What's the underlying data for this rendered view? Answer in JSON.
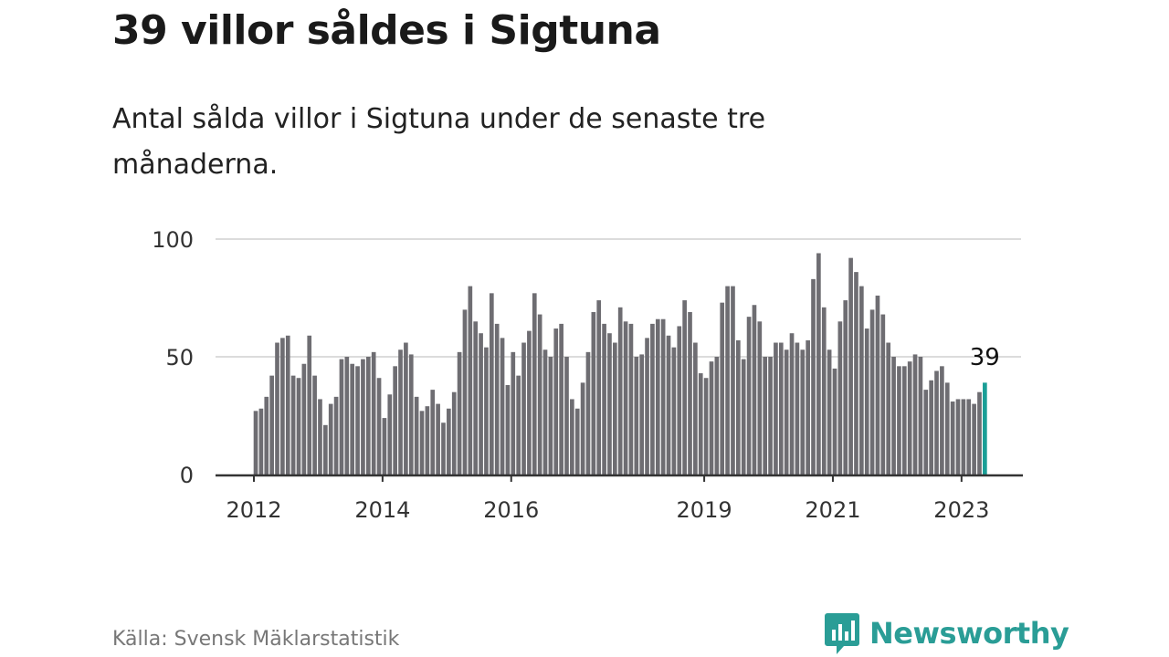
{
  "title": "39 villor såldes i Sigtuna",
  "subtitle": "Antal sålda villor i Sigtuna under de senaste tre månaderna.",
  "source": "Källa: Svensk Mäklarstatistik",
  "brand": "Newsworthy",
  "colors": {
    "bar": "#6e6d72",
    "highlight": "#1a9e96",
    "brand": "#2a9d96"
  },
  "chart_data": {
    "type": "bar",
    "title": "",
    "xlabel": "",
    "ylabel": "",
    "ylim": [
      0,
      100
    ],
    "yticks": [
      0,
      50,
      100
    ],
    "xticks": [
      {
        "label": "2012",
        "index": 0
      },
      {
        "label": "2014",
        "index": 24
      },
      {
        "label": "2016",
        "index": 48
      },
      {
        "label": "2019",
        "index": 84
      },
      {
        "label": "2021",
        "index": 108
      },
      {
        "label": "2023",
        "index": 132
      }
    ],
    "start": "2012-01",
    "frequency": "monthly",
    "values": [
      27,
      28,
      33,
      42,
      56,
      58,
      59,
      42,
      41,
      47,
      59,
      42,
      32,
      21,
      30,
      33,
      49,
      50,
      47,
      46,
      49,
      50,
      52,
      41,
      24,
      34,
      46,
      53,
      56,
      51,
      33,
      27,
      29,
      36,
      30,
      22,
      28,
      35,
      52,
      70,
      80,
      65,
      60,
      54,
      77,
      64,
      58,
      38,
      52,
      42,
      56,
      61,
      77,
      68,
      53,
      50,
      62,
      64,
      50,
      32,
      28,
      39,
      52,
      69,
      74,
      64,
      60,
      56,
      71,
      65,
      64,
      50,
      51,
      58,
      64,
      66,
      66,
      59,
      54,
      63,
      74,
      69,
      56,
      43,
      41,
      48,
      50,
      73,
      80,
      80,
      57,
      49,
      67,
      72,
      65,
      50,
      50,
      56,
      56,
      53,
      60,
      56,
      53,
      57,
      83,
      94,
      71,
      53,
      45,
      65,
      74,
      92,
      86,
      80,
      62,
      70,
      76,
      68,
      56,
      50,
      46,
      46,
      48,
      51,
      50,
      36,
      40,
      44,
      46,
      39,
      31,
      32,
      32,
      32,
      30,
      35,
      39
    ],
    "highlight_label": "39",
    "grid": true
  }
}
